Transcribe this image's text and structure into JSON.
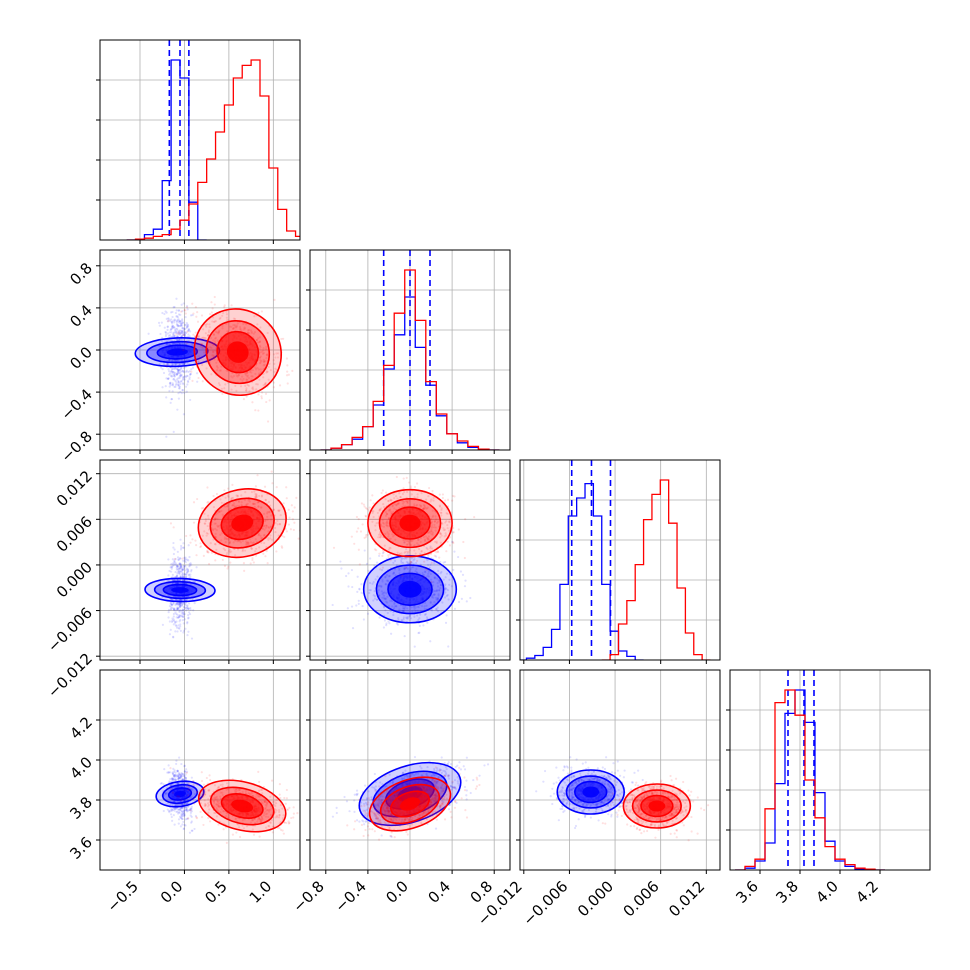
{
  "chart_data": {
    "type": "corner",
    "colors": {
      "series_a": "#0000ff",
      "series_b": "#ff0000",
      "grid": "#b0b0b0",
      "frame": "#000000"
    },
    "series": [
      {
        "color": "blue",
        "params": [
          {
            "quantiles": [
              -0.17,
              -0.05,
              0.05
            ],
            "hist_x": [
              -0.6,
              -0.5,
              -0.4,
              -0.3,
              -0.2,
              -0.1,
              0.0,
              0.1,
              0.2
            ],
            "hist_h": [
              0,
              0.005,
              0.03,
              0.06,
              0.33,
              1.0,
              0.9,
              0.21,
              0
            ]
          },
          {
            "quantiles": [
              -0.25,
              0.0,
              0.19
            ],
            "hist_x": [
              -0.8,
              -0.7,
              -0.6,
              -0.5,
              -0.4,
              -0.3,
              -0.2,
              -0.1,
              0.0,
              0.1,
              0.2,
              0.3,
              0.4,
              0.5,
              0.6,
              0.7,
              0.8
            ],
            "hist_h": [
              0,
              0.01,
              0.03,
              0.06,
              0.13,
              0.25,
              0.45,
              0.64,
              0.85,
              0.57,
              0.36,
              0.19,
              0.09,
              0.04,
              0.015,
              0.005,
              0
            ]
          },
          {
            "quantiles": [
              -0.0057,
              -0.0031,
              -0.0006
            ],
            "hist_x": [
              -0.0122,
              -0.0111,
              -0.01,
              -0.0089,
              -0.0078,
              -0.0067,
              -0.0056,
              -0.0045,
              -0.0034,
              -0.0023,
              -0.0012,
              -0.0001,
              0.001,
              0.0021,
              0.0032
            ],
            "hist_h": [
              0,
              0.01,
              0.025,
              0.07,
              0.17,
              0.42,
              0.8,
              0.9,
              0.98,
              0.8,
              0.42,
              0.16,
              0.05,
              0.02,
              0
            ]
          },
          {
            "quantiles": [
              3.74,
              3.82,
              3.87
            ],
            "hist_x": [
              3.5,
              3.55,
              3.6,
              3.65,
              3.7,
              3.75,
              3.8,
              3.85,
              3.9,
              3.95,
              4.0,
              4.05,
              4.1,
              4.15,
              4.2
            ],
            "hist_h": [
              0,
              0.01,
              0.05,
              0.15,
              0.48,
              0.87,
              1.0,
              0.82,
              0.43,
              0.16,
              0.05,
              0.02,
              0.005,
              0.002,
              0
            ]
          }
        ],
        "pairs": [
          {
            "row": 1,
            "col": 0,
            "center": [
              -0.08,
              -0.02
            ],
            "sd": [
              0.08,
              0.2
            ],
            "rho": -0.1
          },
          {
            "row": 2,
            "col": 0,
            "center": [
              -0.05,
              -0.0033
            ],
            "sd": [
              0.065,
              0.0023
            ],
            "rho": 0.05
          },
          {
            "row": 2,
            "col": 1,
            "center": [
              0.0,
              -0.0032
            ],
            "sd": [
              0.22,
              0.0022
            ],
            "rho": 0.0
          },
          {
            "row": 3,
            "col": 0,
            "center": [
              -0.05,
              3.83
            ],
            "sd": [
              0.07,
              0.06
            ],
            "rho": -0.2
          },
          {
            "row": 3,
            "col": 1,
            "center": [
              0.0,
              3.83
            ],
            "sd": [
              0.25,
              0.07
            ],
            "rho": 0.5
          },
          {
            "row": 3,
            "col": 2,
            "center": [
              -0.0032,
              3.84
            ],
            "sd": [
              0.0022,
              0.055
            ],
            "rho": 0.0
          }
        ]
      },
      {
        "color": "red",
        "params": [
          {
            "hist_x": [
              -0.6,
              -0.5,
              -0.4,
              -0.3,
              -0.2,
              -0.1,
              0.0,
              0.1,
              0.2,
              0.3,
              0.4,
              0.5,
              0.6,
              0.7,
              0.8,
              0.9,
              1.0,
              1.1,
              1.2,
              1.3
            ],
            "hist_h": [
              0,
              0.005,
              0.01,
              0.02,
              0.03,
              0.06,
              0.11,
              0.2,
              0.32,
              0.45,
              0.6,
              0.75,
              0.9,
              0.97,
              1.0,
              0.8,
              0.4,
              0.17,
              0.05,
              0.02
            ]
          },
          {
            "hist_x": [
              -0.8,
              -0.7,
              -0.6,
              -0.5,
              -0.4,
              -0.3,
              -0.2,
              -0.1,
              0.0,
              0.1,
              0.2,
              0.3,
              0.4,
              0.5,
              0.6,
              0.7,
              0.8
            ],
            "hist_h": [
              0,
              0.01,
              0.03,
              0.07,
              0.13,
              0.27,
              0.47,
              0.76,
              1.0,
              0.72,
              0.38,
              0.2,
              0.09,
              0.05,
              0.02,
              0.005,
              0
            ]
          },
          {
            "hist_x": [
              -0.0012,
              -0.0001,
              0.001,
              0.0021,
              0.0032,
              0.0043,
              0.0054,
              0.0065,
              0.0076,
              0.0087,
              0.0098,
              0.0109,
              0.012
            ],
            "hist_h": [
              0,
              0.03,
              0.2,
              0.33,
              0.53,
              0.78,
              0.92,
              1.0,
              0.76,
              0.4,
              0.15,
              0.03,
              0
            ]
          },
          {
            "hist_x": [
              3.5,
              3.55,
              3.6,
              3.65,
              3.7,
              3.75,
              3.8,
              3.85,
              3.9,
              3.95,
              4.0,
              4.05,
              4.1,
              4.15,
              4.2
            ],
            "hist_h": [
              0,
              0.02,
              0.06,
              0.34,
              0.93,
              1.0,
              0.86,
              0.5,
              0.29,
              0.13,
              0.06,
              0.03,
              0.01,
              0.005,
              0
            ]
          }
        ],
        "pairs": [
          {
            "row": 1,
            "col": 0,
            "center": [
              0.6,
              -0.02
            ],
            "sd": [
              0.25,
              0.2
            ],
            "rho": -0.4
          },
          {
            "row": 2,
            "col": 0,
            "center": [
              0.65,
              0.0055
            ],
            "sd": [
              0.25,
              0.0022
            ],
            "rho": 0.15
          },
          {
            "row": 2,
            "col": 1,
            "center": [
              0.0,
              0.0055
            ],
            "sd": [
              0.2,
              0.0022
            ],
            "rho": 0.0
          },
          {
            "row": 3,
            "col": 0,
            "center": [
              0.65,
              3.77
            ],
            "sd": [
              0.25,
              0.06
            ],
            "rho": -0.35
          },
          {
            "row": 3,
            "col": 1,
            "center": [
              0.0,
              3.78
            ],
            "sd": [
              0.2,
              0.06
            ],
            "rho": 0.5
          },
          {
            "row": 3,
            "col": 2,
            "center": [
              0.0055,
              3.77
            ],
            "sd": [
              0.0022,
              0.055
            ],
            "rho": 0.0
          }
        ]
      }
    ],
    "axes": [
      {
        "lim": [
          -0.95,
          1.3
        ],
        "ticks": [
          -0.5,
          0.0,
          0.5,
          1.0
        ],
        "tick_labels": [
          "−0.5",
          "0.0",
          "0.5",
          "1.0"
        ]
      },
      {
        "lim": [
          -0.95,
          0.95
        ],
        "ticks": [
          -0.8,
          -0.4,
          0.0,
          0.4,
          0.8
        ],
        "tick_labels": [
          "−0.8",
          "−0.4",
          "0.0",
          "0.4",
          "0.8"
        ]
      },
      {
        "lim": [
          -0.0125,
          0.0138
        ],
        "ticks": [
          -0.012,
          -0.006,
          0.0,
          0.006,
          0.012
        ],
        "tick_labels": [
          "−0.012",
          "−0.006",
          "0.000",
          "0.006",
          "0.012"
        ]
      },
      {
        "lim": [
          3.45,
          4.45
        ],
        "ticks": [
          3.6,
          3.8,
          4.0,
          4.2
        ],
        "tick_labels": [
          "3.6",
          "3.8",
          "4.0",
          "4.2"
        ]
      }
    ],
    "grid": true,
    "contour_levels": [
      0.2,
      0.55,
      0.85
    ]
  }
}
